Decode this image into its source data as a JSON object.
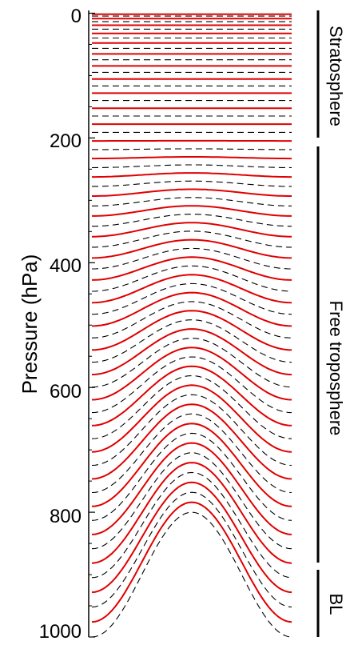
{
  "figure": {
    "ylabel": "Pressure (hPa)",
    "y_ticks": [
      {
        "value": 0,
        "label": "0"
      },
      {
        "value": 200,
        "label": "200"
      },
      {
        "value": 400,
        "label": "400"
      },
      {
        "value": 600,
        "label": "600"
      },
      {
        "value": 800,
        "label": "800"
      },
      {
        "value": 1000,
        "label": "1000"
      }
    ],
    "regions": {
      "stratosphere": "Stratosphere",
      "free_troposphere": "Free troposphere",
      "boundary_layer": "BL"
    },
    "colors": {
      "solid_levels": "#e00000",
      "dashed_levels": "#000000",
      "axis": "#000000"
    },
    "line_styles": {
      "odd_levels": "solid red",
      "even_levels": "dashed black"
    },
    "terrain": "sinusoidal bump centered in domain, peak near 800 hPa"
  }
}
